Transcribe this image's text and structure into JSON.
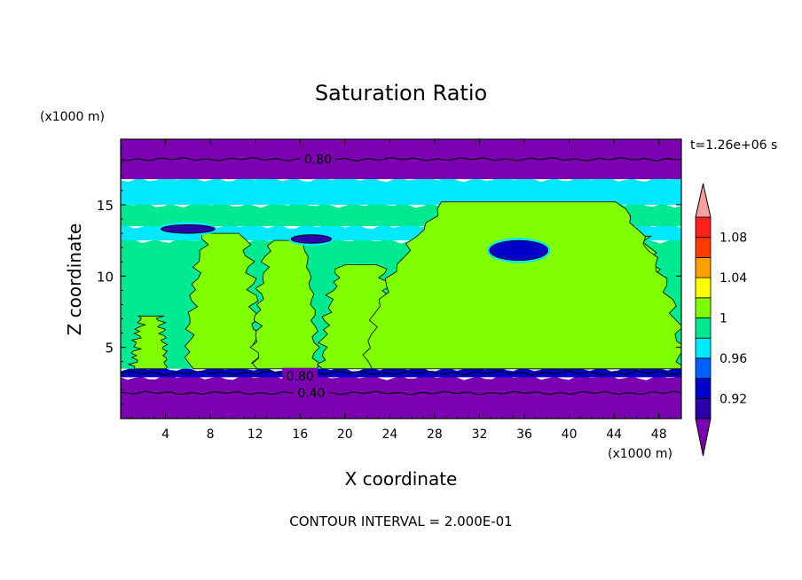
{
  "chart_data": {
    "type": "heatmap",
    "title": "Saturation Ratio",
    "xlabel": "X coordinate",
    "ylabel": "Z coordinate",
    "x_unit": "(x1000 m)",
    "z_unit": "(x1000 m)",
    "time_label": "t=1.26e+06 s",
    "footer": "CONTOUR INTERVAL = 2.000E-01",
    "xlim": [
      0,
      50
    ],
    "ylim": [
      0,
      19.6
    ],
    "x_ticks": [
      "4",
      "8",
      "12",
      "16",
      "20",
      "24",
      "28",
      "32",
      "36",
      "40",
      "44",
      "48"
    ],
    "y_ticks": [
      "5",
      "10",
      "15"
    ],
    "contour_labels": [
      "0.80",
      "0.80",
      "0.40"
    ],
    "colorbar": {
      "levels": [
        0.9,
        0.92,
        0.94,
        0.96,
        0.98,
        1.0,
        1.02,
        1.04,
        1.06,
        1.08,
        1.1
      ],
      "tick_labels": [
        "0.92",
        "0.96",
        "1",
        "1.04",
        "1.08"
      ],
      "colors": [
        "#7a00b0",
        "#2a00a8",
        "#0000c8",
        "#0060ff",
        "#00e8ff",
        "#00e890",
        "#80ff00",
        "#ffff00",
        "#ffa000",
        "#ff3c00",
        "#ff2020",
        "#f8a0a0"
      ]
    },
    "bands": [
      {
        "z0": 0.0,
        "z1": 2.9,
        "value": 0.4
      },
      {
        "z0": 2.9,
        "z1": 3.5,
        "value": 0.92
      },
      {
        "z0": 3.5,
        "z1": 12.5,
        "value": 0.99
      },
      {
        "z0": 12.5,
        "z1": 13.5,
        "value": 0.96
      },
      {
        "z0": 13.5,
        "z1": 15.0,
        "value": 0.99
      },
      {
        "z0": 15.0,
        "z1": 16.8,
        "value": 0.97
      },
      {
        "z0": 16.8,
        "z1": 19.6,
        "value": 0.8
      }
    ],
    "plumes": [
      {
        "x0": 1.2,
        "x1": 4.0,
        "ztop": 7.2,
        "value": 1.0
      },
      {
        "x0": 6.0,
        "x1": 12.2,
        "ztop": 13.0,
        "value": 1.0
      },
      {
        "x0": 12.0,
        "x1": 17.4,
        "ztop": 12.5,
        "value": 1.0
      },
      {
        "x0": 18.0,
        "x1": 24.5,
        "ztop": 10.8,
        "value": 1.0
      },
      {
        "x0": 29.2,
        "x1": 33.8,
        "ztop": 10.5,
        "value": 1.0
      },
      {
        "x0": 37.0,
        "x1": 42.0,
        "ztop": 9.0,
        "value": 1.0
      },
      {
        "x0": 40.5,
        "x1": 48.5,
        "ztop": 12.8,
        "value": 1.0
      },
      {
        "x0": 22.0,
        "x1": 50.0,
        "ztop": 15.2,
        "value": 1.0
      }
    ],
    "dry_patches": [
      {
        "x": 35.5,
        "z": 11.8,
        "rx": 2.6,
        "rz": 0.7,
        "value": 0.92
      },
      {
        "x": 17.0,
        "z": 12.6,
        "rx": 1.8,
        "rz": 0.3,
        "value": 0.9
      },
      {
        "x": 6.0,
        "z": 13.3,
        "rx": 2.4,
        "rz": 0.3,
        "value": 0.9
      }
    ]
  }
}
